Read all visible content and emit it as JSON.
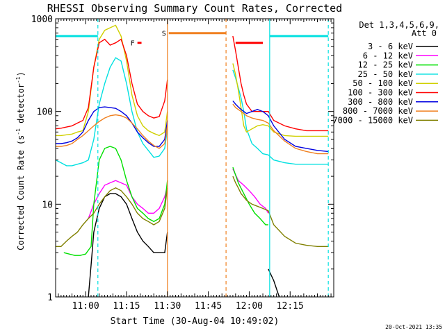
{
  "chart_data": {
    "type": "line",
    "title": "RHESSI Observing Summary Count Rates, Corrected",
    "xlabel": "Start Time (30-Aug-04 10:49:02)",
    "ylabel": "Corrected Count Rate (s⁻¹ detector⁻¹)",
    "ylabel_parts": {
      "main": "Corrected Count Rate (s",
      "exp1": "-1",
      "mid": " detector",
      "exp2": "-1",
      "end": ")"
    },
    "x_unit": "minutes after 10:49:02",
    "xlim": [
      0,
      102
    ],
    "ylim": [
      1,
      1000
    ],
    "yscale": "log",
    "x_ticks": [
      {
        "x": 11,
        "label": "11:00"
      },
      {
        "x": 26,
        "label": "11:15"
      },
      {
        "x": 41,
        "label": "11:30"
      },
      {
        "x": 56,
        "label": "11:45"
      },
      {
        "x": 71,
        "label": "12:00"
      },
      {
        "x": 86,
        "label": "12:15"
      }
    ],
    "y_ticks": [
      {
        "y": 1,
        "label": "1"
      },
      {
        "y": 10,
        "label": "10"
      },
      {
        "y": 100,
        "label": "100"
      },
      {
        "y": 1000,
        "label": "1000"
      }
    ],
    "legend_header": [
      "Det 1,3,4,5,6,9,",
      "Att 0"
    ],
    "legend_position": "right",
    "footer_timestamp": "20-Oct-2021 13:35",
    "gaps": [
      [
        41.5,
        64
      ]
    ],
    "vlines": [
      {
        "x": 15.5,
        "color": "#00e0e0",
        "style": "dashed"
      },
      {
        "x": 41,
        "color": "#f08020",
        "style": "solid"
      },
      {
        "x": 62.5,
        "color": "#f08020",
        "style": "dashed"
      },
      {
        "x": 78.5,
        "color": "#00e0e0",
        "style": "solid"
      },
      {
        "x": 100,
        "color": "#00e0e0",
        "style": "dashed"
      }
    ],
    "flag_bars": [
      {
        "label": "",
        "x": [
          0,
          15.5
        ],
        "y": 650,
        "color": "#00e0e0"
      },
      {
        "label": "",
        "x": [
          78.5,
          100
        ],
        "y": 650,
        "color": "#00e0e0"
      },
      {
        "label": "S",
        "x": [
          41.5,
          62.5
        ],
        "y": 700,
        "color": "#f08020"
      },
      {
        "label": "F",
        "x": [
          30,
          31.5
        ],
        "y": 550,
        "color": "#ff0000"
      },
      {
        "label": "",
        "x": [
          66,
          76
        ],
        "y": 550,
        "color": "#ff0000"
      }
    ],
    "series": [
      {
        "name": "3 - 6 keV",
        "color": "#000000",
        "x": [
          12,
          13,
          14,
          16,
          18,
          20,
          22,
          24,
          26,
          28,
          30,
          32,
          34,
          36,
          38,
          40,
          41,
          78,
          80,
          82
        ],
        "y": [
          1,
          2.2,
          5,
          9,
          12,
          13,
          13,
          12,
          10,
          7,
          5,
          4,
          3.5,
          3,
          3,
          3,
          5,
          2,
          1.5,
          1
        ]
      },
      {
        "name": "6 - 12 keV",
        "color": "#ff00ff",
        "x": [
          12,
          14,
          16,
          18,
          20,
          22,
          24,
          26,
          28,
          30,
          32,
          34,
          36,
          38,
          40,
          41,
          65,
          67,
          69,
          71,
          73,
          75,
          77,
          78
        ],
        "y": [
          7,
          10,
          13,
          16,
          17,
          18,
          17,
          16,
          12,
          10,
          9,
          8,
          8,
          9,
          12,
          16,
          24,
          18,
          16,
          14,
          12,
          10,
          9,
          8
        ]
      },
      {
        "name": "12 - 25 keV",
        "color": "#00e000",
        "x": [
          3,
          5,
          7,
          9,
          11,
          13,
          14,
          16,
          18,
          20,
          22,
          24,
          26,
          28,
          30,
          32,
          34,
          36,
          38,
          40,
          41,
          65,
          67,
          69,
          71,
          73,
          75,
          77,
          78
        ],
        "y": [
          3,
          2.9,
          2.8,
          2.8,
          2.9,
          3.5,
          10,
          30,
          40,
          42,
          40,
          30,
          18,
          12,
          9,
          8,
          7,
          6.5,
          7,
          10,
          18,
          25,
          17,
          13,
          10,
          8,
          7,
          6,
          6
        ]
      },
      {
        "name": "25 - 50 keV",
        "color": "#00e0e0",
        "x": [
          0,
          2,
          4,
          6,
          8,
          10,
          12,
          14,
          16,
          18,
          20,
          22,
          24,
          26,
          28,
          30,
          32,
          34,
          36,
          38,
          40,
          41,
          65,
          66,
          67,
          68,
          69,
          70,
          72,
          74,
          76,
          78,
          80,
          84,
          88,
          92,
          96,
          100
        ],
        "y": [
          30,
          28,
          26,
          26,
          27,
          28,
          30,
          50,
          120,
          200,
          300,
          380,
          350,
          200,
          100,
          60,
          45,
          38,
          32,
          33,
          40,
          65,
          280,
          230,
          180,
          140,
          100,
          65,
          45,
          40,
          35,
          34,
          30,
          28,
          27,
          27,
          27,
          27
        ]
      },
      {
        "name": "50 - 100 keV",
        "color": "#d0d000",
        "x": [
          0,
          2,
          4,
          6,
          8,
          10,
          12,
          14,
          16,
          18,
          20,
          22,
          24,
          26,
          28,
          30,
          32,
          34,
          36,
          38,
          40,
          41,
          65,
          66,
          67,
          68,
          69,
          70,
          72,
          74,
          76,
          78,
          80,
          84,
          88,
          92,
          96,
          100
        ],
        "y": [
          55,
          55,
          56,
          57,
          60,
          62,
          100,
          300,
          600,
          750,
          800,
          850,
          650,
          350,
          150,
          90,
          70,
          62,
          58,
          55,
          60,
          100,
          330,
          250,
          170,
          110,
          70,
          60,
          65,
          70,
          72,
          70,
          60,
          55,
          54,
          54,
          54,
          54
        ]
      },
      {
        "name": "100 - 300 keV",
        "color": "#ff0000",
        "x": [
          0,
          2,
          4,
          6,
          8,
          10,
          12,
          14,
          16,
          18,
          20,
          22,
          24,
          26,
          28,
          30,
          32,
          34,
          36,
          38,
          40,
          41,
          65,
          66,
          67,
          68,
          69,
          70,
          72,
          74,
          76,
          78,
          80,
          84,
          88,
          92,
          96,
          100
        ],
        "y": [
          65,
          66,
          68,
          70,
          75,
          80,
          110,
          300,
          550,
          600,
          520,
          550,
          600,
          400,
          200,
          120,
          100,
          90,
          85,
          88,
          130,
          220,
          650,
          450,
          300,
          200,
          150,
          120,
          100,
          100,
          100,
          100,
          80,
          70,
          65,
          62,
          62,
          62
        ]
      },
      {
        "name": "300 - 800 keV",
        "color": "#0000e0",
        "x": [
          0,
          2,
          4,
          6,
          8,
          10,
          12,
          14,
          16,
          18,
          20,
          22,
          24,
          26,
          28,
          30,
          32,
          34,
          36,
          38,
          40,
          41,
          65,
          66,
          67,
          68,
          69,
          70,
          72,
          74,
          76,
          78,
          80,
          84,
          88,
          92,
          96,
          100
        ],
        "y": [
          45,
          45,
          46,
          48,
          52,
          60,
          80,
          100,
          110,
          112,
          110,
          108,
          100,
          90,
          75,
          60,
          52,
          46,
          42,
          42,
          50,
          80,
          130,
          120,
          112,
          105,
          100,
          95,
          100,
          105,
          100,
          90,
          70,
          50,
          42,
          40,
          38,
          37
        ]
      },
      {
        "name": "800 - 7000 keV",
        "color": "#f08020",
        "x": [
          0,
          2,
          4,
          6,
          8,
          10,
          12,
          14,
          16,
          18,
          20,
          22,
          24,
          26,
          28,
          30,
          32,
          34,
          36,
          38,
          40,
          41,
          65,
          66,
          67,
          68,
          69,
          70,
          72,
          74,
          76,
          78,
          80,
          84,
          88,
          92,
          96,
          100
        ],
        "y": [
          42,
          42,
          43,
          45,
          50,
          55,
          62,
          70,
          78,
          85,
          90,
          92,
          90,
          85,
          75,
          65,
          55,
          48,
          43,
          40,
          45,
          70,
          120,
          110,
          105,
          100,
          95,
          90,
          85,
          82,
          80,
          75,
          62,
          48,
          40,
          37,
          35,
          35
        ]
      },
      {
        "name": "7000 - 15000 keV",
        "color": "#808000",
        "x": [
          0,
          2,
          4,
          6,
          8,
          10,
          12,
          14,
          16,
          18,
          20,
          22,
          24,
          26,
          28,
          30,
          32,
          34,
          36,
          38,
          40,
          41,
          65,
          66,
          67,
          68,
          69,
          70,
          72,
          74,
          76,
          78,
          80,
          84,
          88,
          92,
          96,
          100
        ],
        "y": [
          3.5,
          3.5,
          4,
          4.5,
          5,
          6,
          7,
          8,
          10,
          12,
          14,
          15,
          14,
          12,
          10,
          8,
          7,
          6.5,
          6,
          6.5,
          9,
          15,
          20,
          17,
          15,
          13,
          12,
          11,
          10,
          9.5,
          9,
          8.5,
          6,
          4.5,
          3.8,
          3.6,
          3.5,
          3.5
        ]
      }
    ]
  }
}
